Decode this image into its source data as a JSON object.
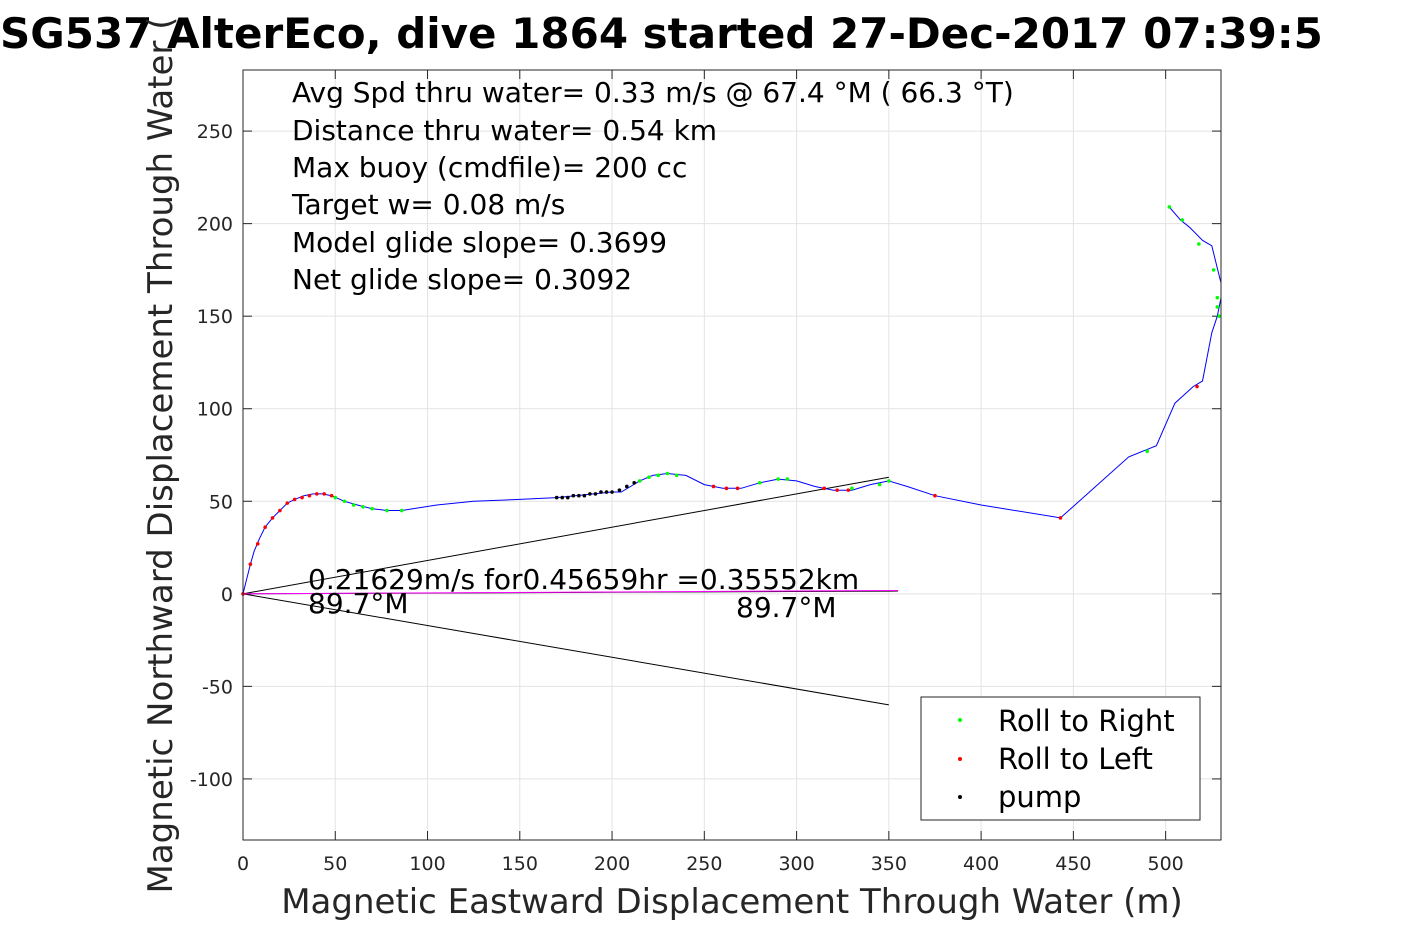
{
  "chart_data": {
    "type": "line",
    "title": "SG537 AlterEco, dive 1864 started 27-Dec-2017 07:39:5",
    "xlabel": "Magnetic Eastward Displacement Through Water (m)",
    "ylabel": "Magnetic Northward Displacement Through Water (",
    "xlim": [
      0,
      530
    ],
    "ylim": [
      -133,
      283
    ],
    "xticks": [
      0,
      50,
      100,
      150,
      200,
      250,
      300,
      350,
      400,
      450,
      500
    ],
    "yticks": [
      -100,
      -50,
      0,
      50,
      100,
      150,
      200,
      250
    ],
    "grid": true,
    "annotations": [
      "Avg Spd thru water=  0.33 m/s @  67.4 °M ( 66.3 °T)",
      "Distance thru water=  0.54 km",
      "Max buoy (cmdfile)= 200 cc",
      "Target w= 0.08 m/s",
      "Model glide slope= 0.3699",
      "Net glide slope= 0.3092"
    ],
    "current_label": "0.21629m/s for0.45659hr =0.35552km",
    "heading_label_1": "89.7°M",
    "heading_label_2": "89.7°M",
    "legend": {
      "position": "bottom-right",
      "entries": [
        {
          "label": "Roll to Right",
          "color": "#00ff00"
        },
        {
          "label": "Roll to Left",
          "color": "#ff0000"
        },
        {
          "label": "pump",
          "color": "#000000"
        }
      ]
    },
    "track": {
      "color": "#0000ff",
      "x": [
        0,
        2,
        4,
        6,
        9,
        12,
        16,
        20,
        24,
        28,
        33,
        38,
        43,
        48,
        55,
        62,
        70,
        78,
        86,
        105,
        125,
        150,
        170,
        180,
        190,
        200,
        205,
        210,
        215,
        222,
        230,
        240,
        250,
        260,
        270,
        280,
        290,
        300,
        310,
        320,
        330,
        340,
        350,
        360,
        375,
        400,
        443,
        480,
        495,
        505,
        515,
        520,
        525,
        528,
        530,
        530,
        528,
        525,
        520,
        513,
        508,
        502
      ],
      "y": [
        0,
        8,
        16,
        23,
        30,
        36,
        41,
        45,
        49,
        51,
        53,
        54,
        54,
        53,
        50,
        48,
        46,
        45,
        45,
        48,
        50,
        51,
        52,
        53,
        54,
        55,
        55,
        58,
        61,
        64,
        65,
        64,
        59,
        57,
        57,
        60,
        62,
        61,
        58,
        56,
        56,
        59,
        61,
        58,
        53,
        48,
        41,
        74,
        80,
        103,
        112,
        115,
        141,
        150,
        160,
        168,
        176,
        188,
        191,
        198,
        202,
        209
      ]
    },
    "roll_right_points": {
      "x": [
        50,
        55,
        60,
        65,
        70,
        78,
        86,
        215,
        220,
        225,
        230,
        235,
        280,
        290,
        295,
        330,
        345,
        350,
        490,
        502,
        509,
        518,
        526,
        528,
        528,
        529
      ],
      "y": [
        52,
        50,
        48,
        47,
        46,
        45,
        45,
        61,
        63,
        64,
        65,
        64,
        60,
        62,
        62,
        57,
        59,
        61,
        77,
        209,
        202,
        189,
        175,
        160,
        155,
        150
      ]
    },
    "roll_left_points": {
      "x": [
        0,
        4,
        8,
        12,
        16,
        20,
        24,
        28,
        32,
        36,
        40,
        44,
        48,
        255,
        262,
        268,
        315,
        322,
        328,
        375,
        443,
        517
      ],
      "y": [
        0,
        16,
        27,
        36,
        41,
        45,
        49,
        51,
        52,
        53,
        54,
        54,
        53,
        58,
        57,
        57,
        57,
        56,
        56,
        53,
        41,
        112
      ]
    },
    "pump_points": {
      "x": [
        170,
        173,
        176,
        179,
        182,
        185,
        188,
        191,
        194,
        197,
        200,
        204,
        208,
        212
      ],
      "y": [
        52,
        52,
        52,
        53,
        53,
        53,
        54,
        54,
        55,
        55,
        55,
        56,
        58,
        60
      ]
    },
    "current_line": {
      "color": "#ff00ff",
      "x": [
        0,
        355
      ],
      "y": [
        0,
        1.8
      ]
    },
    "cone_lines": {
      "color": "#000000",
      "lines": [
        {
          "x": [
            0,
            350
          ],
          "y": [
            0,
            63
          ]
        },
        {
          "x": [
            0,
            350
          ],
          "y": [
            0,
            -60
          ]
        },
        {
          "x": [
            0,
            355
          ],
          "y": [
            0,
            1.5
          ]
        }
      ]
    }
  }
}
